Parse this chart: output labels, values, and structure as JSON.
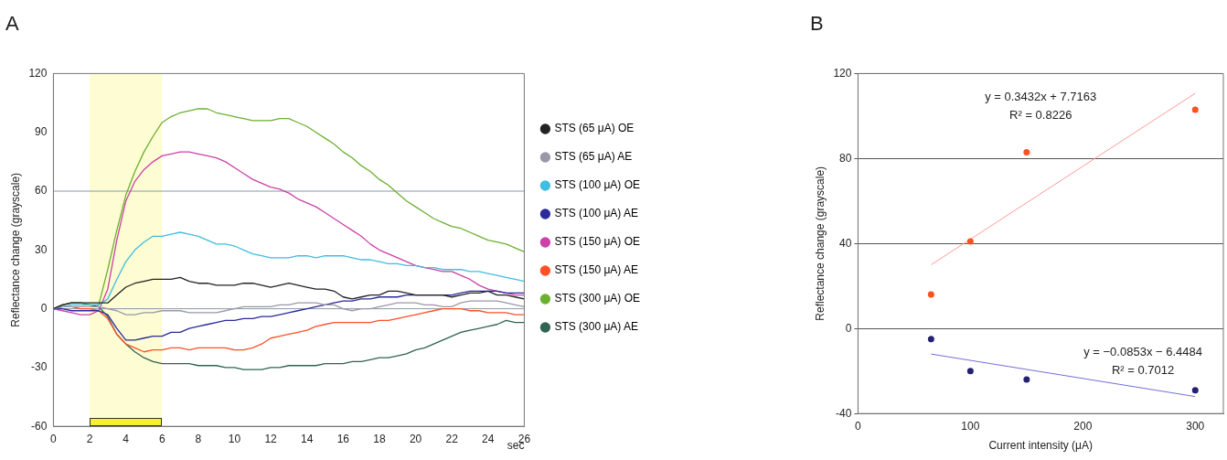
{
  "chart_data": [
    {
      "type": "line",
      "title": "A",
      "xlabel": "sec",
      "ylabel": "Reflectance change (grayscale)",
      "legend": "right",
      "marker": "none",
      "grid": false,
      "x": [
        0,
        0.5,
        1,
        1.5,
        2,
        2.5,
        3,
        3.5,
        4,
        4.5,
        5,
        5.5,
        6,
        6.5,
        7,
        7.5,
        8,
        8.5,
        9,
        9.5,
        10,
        10.5,
        11,
        11.5,
        12,
        12.5,
        13,
        13.5,
        14,
        14.5,
        15,
        15.5,
        16,
        16.5,
        17,
        17.5,
        18,
        18.5,
        19,
        19.5,
        20,
        20.5,
        21,
        21.5,
        22,
        22.5,
        23,
        23.5,
        24,
        24.5,
        25,
        25.5,
        26
      ],
      "xlim": [
        0,
        26
      ],
      "xticks": [
        0,
        2,
        4,
        6,
        8,
        10,
        12,
        14,
        16,
        18,
        20,
        22,
        24,
        26
      ],
      "ylim": [
        -60,
        120
      ],
      "yticks": [
        -60,
        -30,
        0,
        30,
        60,
        90,
        120
      ],
      "ref_lines": [
        {
          "axis": "y",
          "value": 60,
          "color": "#8a9aa8"
        },
        {
          "axis": "y",
          "value": 0,
          "color": "#8a9aa8"
        }
      ],
      "bands": [
        {
          "axis": "x",
          "from": 2,
          "to": 6,
          "color": "#f5f032"
        }
      ],
      "series": [
        {
          "name": "STS (65 μA) OE",
          "color": "#222222",
          "values": [
            0,
            2,
            3,
            3,
            3,
            3,
            3,
            7,
            11,
            13,
            14,
            15,
            15,
            15,
            16,
            14,
            13,
            13,
            12,
            12,
            12,
            13,
            13,
            12,
            11,
            12,
            13,
            12,
            11,
            10,
            10,
            9,
            6,
            5,
            6,
            7,
            7,
            9,
            9,
            8,
            7,
            7,
            7,
            7,
            6,
            7,
            8,
            8,
            9,
            7,
            7,
            6,
            5
          ]
        },
        {
          "name": "STS (65 μA) AE",
          "color": "#9a98a8",
          "values": [
            0,
            1,
            1,
            1,
            1,
            1,
            0,
            -1,
            -3,
            -3,
            -2,
            -2,
            -1,
            -1,
            -1,
            -2,
            -2,
            -2,
            -2,
            -1,
            0,
            1,
            1,
            1,
            1,
            2,
            2,
            3,
            3,
            3,
            2,
            2,
            0,
            -1,
            0,
            0,
            1,
            2,
            3,
            3,
            3,
            2,
            2,
            1,
            1,
            3,
            4,
            4,
            4,
            4,
            3,
            2,
            1
          ]
        },
        {
          "name": "STS (100 μA) OE",
          "color": "#40bde0",
          "values": [
            0,
            1,
            2,
            2,
            2,
            2,
            5,
            15,
            24,
            30,
            34,
            37,
            37,
            38,
            39,
            38,
            37,
            35,
            33,
            33,
            32,
            30,
            28,
            27,
            26,
            26,
            26,
            27,
            27,
            26,
            27,
            27,
            27,
            26,
            25,
            25,
            24,
            23,
            23,
            22,
            22,
            21,
            21,
            20,
            20,
            20,
            19,
            19,
            18,
            17,
            16,
            15,
            14
          ]
        },
        {
          "name": "STS (100 μA) AE",
          "color": "#2a2a9a",
          "values": [
            0,
            0,
            -1,
            -1,
            -1,
            -1,
            -3,
            -10,
            -16,
            -16,
            -15,
            -14,
            -14,
            -12,
            -12,
            -10,
            -9,
            -8,
            -7,
            -6,
            -6,
            -5,
            -5,
            -4,
            -4,
            -3,
            -2,
            -1,
            0,
            1,
            2,
            3,
            4,
            4,
            5,
            5,
            6,
            6,
            6,
            7,
            7,
            7,
            7,
            7,
            7,
            8,
            9,
            9,
            9,
            9,
            8,
            8,
            8
          ]
        },
        {
          "name": "STS (150 μA) OE",
          "color": "#cc40a8",
          "values": [
            0,
            -1,
            -2,
            -3,
            -3,
            -1,
            10,
            35,
            55,
            65,
            71,
            75,
            78,
            79,
            80,
            80,
            79,
            78,
            77,
            75,
            72,
            69,
            66,
            64,
            62,
            61,
            59,
            56,
            54,
            52,
            49,
            46,
            43,
            40,
            37,
            33,
            30,
            28,
            26,
            24,
            22,
            21,
            20,
            19,
            19,
            17,
            15,
            12,
            10,
            9,
            8,
            7,
            7
          ]
        },
        {
          "name": "STS (150 μA) AE",
          "color": "#ff5028",
          "values": [
            0,
            1,
            1,
            0,
            0,
            -1,
            -5,
            -13,
            -18,
            -20,
            -22,
            -21,
            -21,
            -20,
            -20,
            -21,
            -20,
            -20,
            -20,
            -20,
            -21,
            -21,
            -20,
            -18,
            -15,
            -14,
            -13,
            -12,
            -11,
            -9,
            -8,
            -7,
            -7,
            -7,
            -7,
            -7,
            -6,
            -6,
            -5,
            -4,
            -3,
            -2,
            -1,
            0,
            0,
            0,
            -1,
            -1,
            -2,
            -2,
            -2,
            -3,
            -3
          ]
        },
        {
          "name": "STS (300 μA) OE",
          "color": "#6cb030",
          "values": [
            0,
            2,
            3,
            3,
            2,
            2,
            20,
            40,
            58,
            70,
            80,
            88,
            95,
            98,
            100,
            101,
            102,
            102,
            100,
            99,
            98,
            97,
            96,
            96,
            96,
            97,
            97,
            95,
            93,
            90,
            87,
            84,
            80,
            77,
            73,
            70,
            66,
            63,
            59,
            55,
            52,
            49,
            46,
            44,
            42,
            41,
            39,
            37,
            35,
            34,
            33,
            31,
            29
          ]
        },
        {
          "name": "STS (300 μA) AE",
          "color": "#2f6450",
          "values": [
            0,
            2,
            3,
            3,
            2,
            1,
            -4,
            -13,
            -18,
            -22,
            -25,
            -27,
            -28,
            -28,
            -28,
            -28,
            -29,
            -29,
            -29,
            -30,
            -30,
            -31,
            -31,
            -31,
            -30,
            -30,
            -29,
            -29,
            -29,
            -29,
            -28,
            -28,
            -28,
            -27,
            -27,
            -26,
            -25,
            -25,
            -24,
            -23,
            -21,
            -20,
            -18,
            -16,
            -14,
            -12,
            -11,
            -10,
            -9,
            -8,
            -6,
            -7,
            -7
          ]
        }
      ]
    },
    {
      "type": "scatter",
      "title": "B",
      "xlabel": "Current intensity (μA)",
      "ylabel": "Reflectance change (grayscale)",
      "legend": false,
      "marker": "circle",
      "grid": "y",
      "xlim": [
        0,
        325
      ],
      "xticks": [
        0,
        100,
        200,
        300
      ],
      "ylim": [
        -40,
        120
      ],
      "yticks": [
        -40,
        0,
        40,
        80,
        120
      ],
      "annotations": [
        "y = 0.3432x + 7.7163\nR² = 0.8226",
        "y = −0.0853x − 6.4484\nR² = 0.7012"
      ],
      "series": [
        {
          "color": "#ff5020",
          "x": [
            65,
            100,
            150,
            300
          ],
          "values": [
            16,
            41,
            83,
            103
          ]
        },
        {
          "color": "#22226e",
          "x": [
            65,
            100,
            150,
            300
          ],
          "values": [
            -5,
            -20,
            -24,
            -29
          ]
        },
        {
          "type": "line",
          "marker": "none",
          "color": "#ff9a9a",
          "x": [
            65,
            300
          ],
          "values": [
            30.0,
            110.7
          ]
        },
        {
          "type": "line",
          "marker": "none",
          "color": "#7070d8",
          "x": [
            65,
            300
          ],
          "values": [
            -12.0,
            -32.0
          ]
        }
      ]
    }
  ]
}
